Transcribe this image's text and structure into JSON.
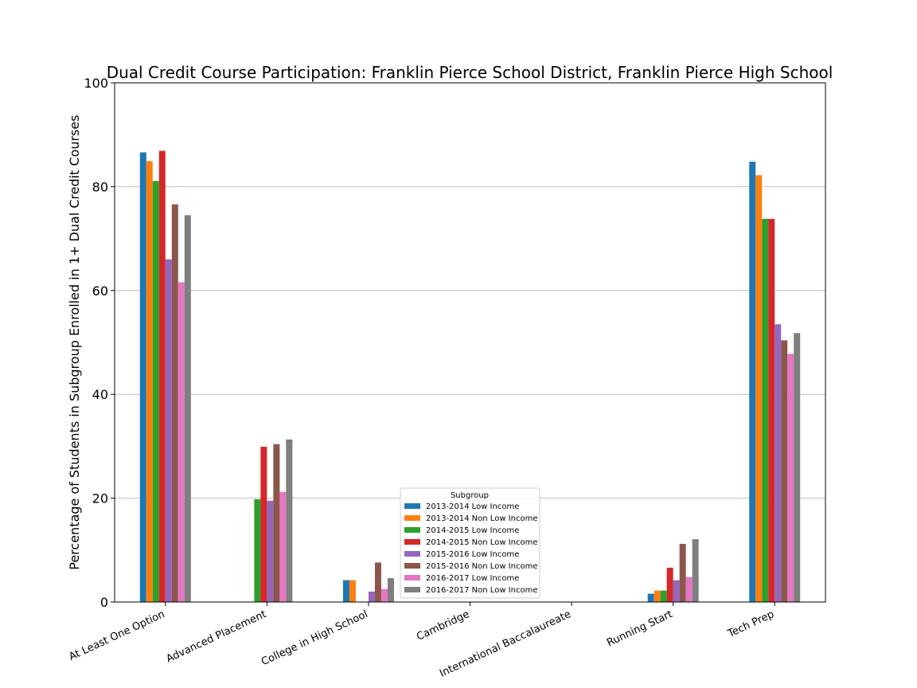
{
  "chart_data": {
    "type": "bar",
    "title": "Dual Credit Course Participation: Franklin Pierce School District, Franklin Pierce High School",
    "xlabel": "",
    "ylabel": "Percentage of Students in Subgroup Enrolled in 1+ Dual Credit Courses",
    "ylim": [
      0,
      100
    ],
    "yticks": [
      0,
      20,
      40,
      60,
      80,
      100
    ],
    "grid": "horizontal",
    "legend_title": "Subgroup",
    "legend_position": "bottom-center",
    "categories": [
      "At Least One Option",
      "Advanced Placement",
      "College in High School",
      "Cambridge",
      "International Baccalaureate",
      "Running Start",
      "Tech Prep"
    ],
    "series": [
      {
        "name": "2013-2014 Low Income",
        "color": "#1f77b4",
        "values": [
          86.6,
          0,
          4.2,
          0,
          0,
          1.6,
          84.8
        ]
      },
      {
        "name": "2013-2014 Non Low Income",
        "color": "#ff7f0e",
        "values": [
          84.9,
          0,
          4.2,
          0,
          0,
          2.2,
          82.2
        ]
      },
      {
        "name": "2014-2015 Low Income",
        "color": "#2ca02c",
        "values": [
          81.1,
          19.8,
          0,
          0,
          0,
          2.2,
          73.8
        ]
      },
      {
        "name": "2014-2015 Non Low Income",
        "color": "#d62728",
        "values": [
          86.9,
          29.9,
          0,
          0,
          0,
          6.6,
          73.8
        ]
      },
      {
        "name": "2015-2016 Low Income",
        "color": "#9467bd",
        "values": [
          66.0,
          19.5,
          2.0,
          0,
          0,
          4.2,
          53.5
        ]
      },
      {
        "name": "2015-2016 Non Low Income",
        "color": "#8c564b",
        "values": [
          76.6,
          30.4,
          7.6,
          0,
          0,
          11.2,
          50.4
        ]
      },
      {
        "name": "2016-2017 Low Income",
        "color": "#e377c2",
        "values": [
          61.6,
          21.2,
          2.5,
          0,
          0,
          4.8,
          47.8
        ]
      },
      {
        "name": "2016-2017 Non Low Income",
        "color": "#7f7f7f",
        "values": [
          74.5,
          31.3,
          4.6,
          0,
          0,
          12.1,
          51.8
        ]
      }
    ]
  }
}
